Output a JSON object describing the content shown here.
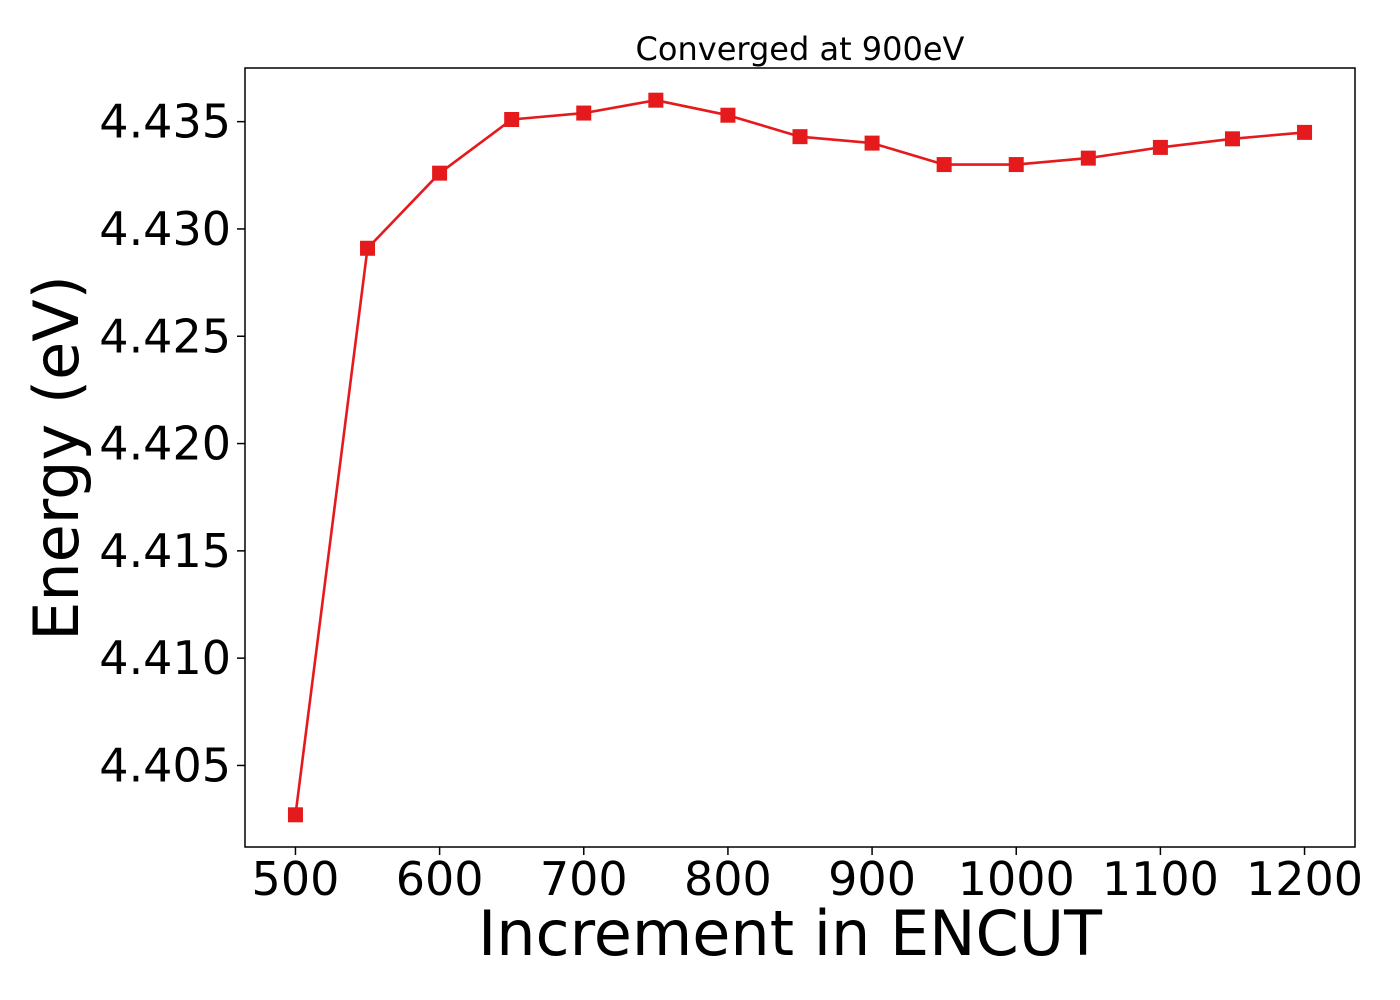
{
  "chart_data": {
    "type": "line",
    "title": "Converged at 900eV",
    "xlabel": "Increment in ENCUT",
    "ylabel": "Energy (eV)",
    "xlim": [
      465,
      1235
    ],
    "ylim": [
      4.4012,
      4.4375
    ],
    "x_ticks": [
      500,
      600,
      700,
      800,
      900,
      1000,
      1100,
      1200
    ],
    "x_tick_labels": [
      "500",
      "600",
      "700",
      "800",
      "900",
      "1000",
      "1100",
      "1200"
    ],
    "y_ticks": [
      4.405,
      4.41,
      4.415,
      4.42,
      4.425,
      4.43,
      4.435
    ],
    "y_tick_labels": [
      "4.405",
      "4.410",
      "4.415",
      "4.420",
      "4.425",
      "4.430",
      "4.435"
    ],
    "grid": false,
    "legend": "none",
    "series": [
      {
        "color": "#e41a1c",
        "marker": "square",
        "x": [
          500,
          550,
          600,
          650,
          700,
          750,
          800,
          850,
          900,
          950,
          1000,
          1050,
          1100,
          1150,
          1200
        ],
        "y": [
          4.4027,
          4.4291,
          4.4326,
          4.4351,
          4.4354,
          4.436,
          4.4353,
          4.4343,
          4.434,
          4.433,
          4.433,
          4.4333,
          4.4338,
          4.4342,
          4.4345
        ]
      }
    ]
  }
}
